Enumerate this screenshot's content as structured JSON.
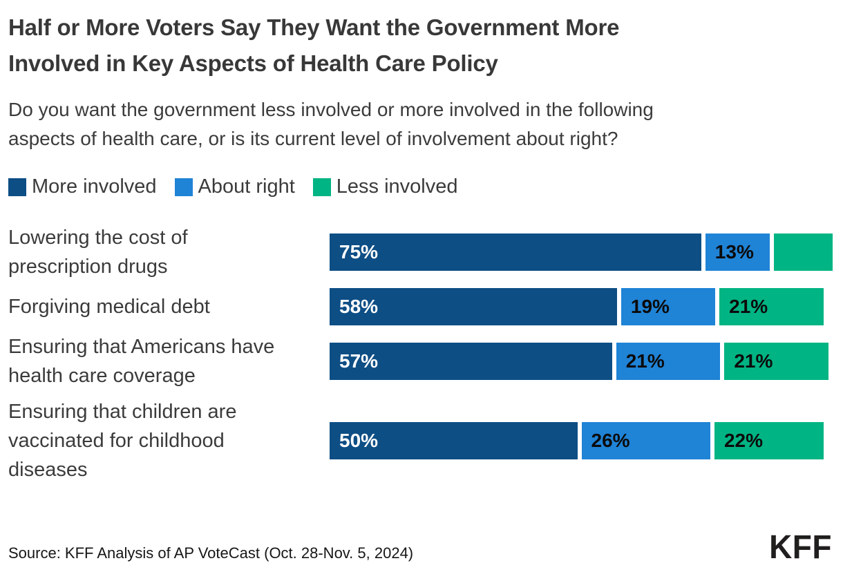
{
  "chart_data": {
    "type": "bar",
    "orientation": "horizontal-stacked",
    "title": "Half or More Voters Say They Want the Government More\nInvolved in Key Aspects of Health Care Policy",
    "subtitle": "Do you want the government less involved or more involved in the following\naspects of health care, or is its current level of involvement about right?",
    "legend_position": "top-left",
    "legend": [
      {
        "label": "More involved",
        "color": "#0d4e85"
      },
      {
        "label": "About right",
        "color": "#1f83d6"
      },
      {
        "label": "Less involved",
        "color": "#00b483"
      }
    ],
    "colors": {
      "more_involved": "#0d4e85",
      "about_right": "#1f83d6",
      "less_involved": "#00b483"
    },
    "xlim": [
      0,
      100
    ],
    "grid": false,
    "categories": [
      "Lowering the cost of prescription drugs",
      "Forgiving medical debt",
      "Ensuring that Americans have health care coverage",
      "Ensuring that children are vaccinated for childhood diseases"
    ],
    "series": [
      {
        "name": "More involved",
        "values": [
          75,
          58,
          57,
          50
        ]
      },
      {
        "name": "About right",
        "values": [
          13,
          19,
          21,
          26
        ]
      },
      {
        "name": "Less involved",
        "values": [
          12,
          21,
          21,
          22
        ]
      }
    ],
    "note": "Less-involved segment of first row is drawn (~12% wide) but carries no data label in the image.",
    "rows": [
      {
        "label": "Lowering the cost of\nprescription drugs",
        "segments": [
          {
            "name": "More involved",
            "value": 75,
            "display": "75%"
          },
          {
            "name": "About right",
            "value": 13,
            "display": "13%"
          },
          {
            "name": "Less involved",
            "value": 12,
            "display": ""
          }
        ]
      },
      {
        "label": "Forgiving medical debt",
        "segments": [
          {
            "name": "More involved",
            "value": 58,
            "display": "58%"
          },
          {
            "name": "About right",
            "value": 19,
            "display": "19%"
          },
          {
            "name": "Less involved",
            "value": 21,
            "display": "21%"
          }
        ]
      },
      {
        "label": "Ensuring that Americans have\nhealth care coverage",
        "segments": [
          {
            "name": "More involved",
            "value": 57,
            "display": "57%"
          },
          {
            "name": "About right",
            "value": 21,
            "display": "21%"
          },
          {
            "name": "Less involved",
            "value": 21,
            "display": "21%"
          }
        ]
      },
      {
        "label": "Ensuring that children are\nvaccinated for childhood\ndiseases",
        "segments": [
          {
            "name": "More involved",
            "value": 50,
            "display": "50%"
          },
          {
            "name": "About right",
            "value": 26,
            "display": "26%"
          },
          {
            "name": "Less involved",
            "value": 22,
            "display": "22%"
          }
        ]
      }
    ]
  },
  "footer": {
    "source": "Source: KFF Analysis of AP VoteCast (Oct. 28-Nov. 5, 2024)",
    "logo": "KFF"
  }
}
